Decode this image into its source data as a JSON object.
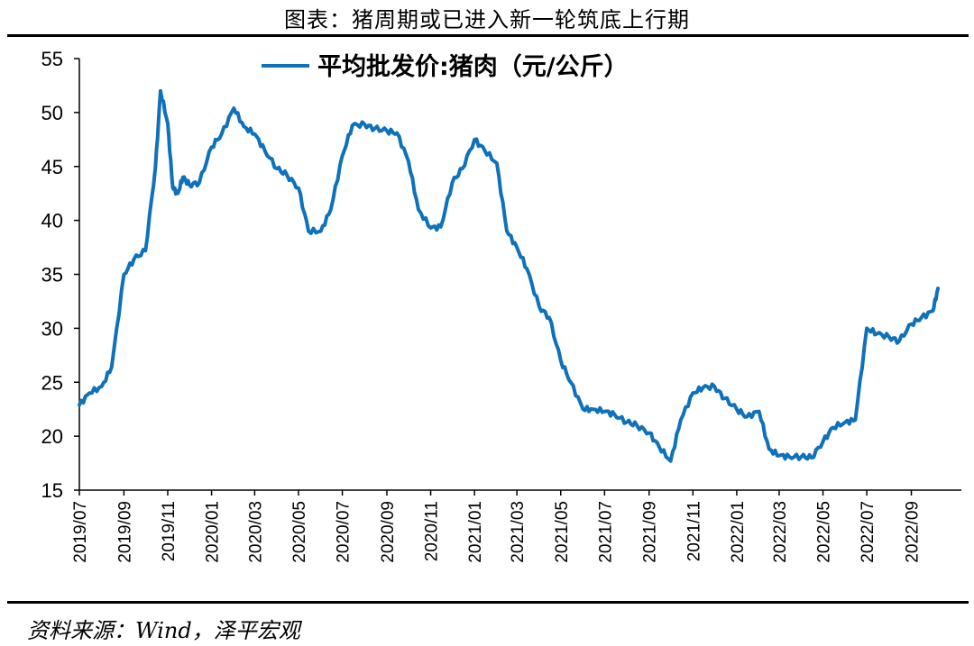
{
  "header": {
    "title": "图表：猪周期或已进入新一轮筑底上行期"
  },
  "footer": {
    "source": "资料来源：Wind，泽平宏观"
  },
  "colors": {
    "line": "#0F71BA",
    "axis": "#000000"
  },
  "chart_data": {
    "type": "line",
    "title": "",
    "xlabel": "",
    "ylabel": "",
    "ylim": [
      15,
      55
    ],
    "yticks": [
      15,
      20,
      25,
      30,
      35,
      40,
      45,
      50,
      55
    ],
    "xticks": [
      "2019/07",
      "2019/09",
      "2019/11",
      "2020/01",
      "2020/03",
      "2020/05",
      "2020/07",
      "2020/09",
      "2020/11",
      "2021/01",
      "2021/03",
      "2021/05",
      "2021/07",
      "2021/09",
      "2021/11",
      "2022/01",
      "2022/03",
      "2022/05",
      "2022/07",
      "2022/09"
    ],
    "grid": false,
    "legend": "top-center",
    "series": [
      {
        "name": "平均批发价:猪肉（元/公斤）",
        "x": [
          "2019/07/01",
          "2019/07/15",
          "2019/08/01",
          "2019/08/15",
          "2019/09/01",
          "2019/09/15",
          "2019/10/01",
          "2019/10/15",
          "2019/10/22",
          "2019/11/01",
          "2019/11/08",
          "2019/11/15",
          "2019/11/22",
          "2019/12/01",
          "2019/12/15",
          "2020/01/01",
          "2020/01/15",
          "2020/02/01",
          "2020/02/15",
          "2020/03/01",
          "2020/03/15",
          "2020/04/01",
          "2020/04/15",
          "2020/05/01",
          "2020/05/15",
          "2020/06/01",
          "2020/06/15",
          "2020/07/01",
          "2020/07/15",
          "2020/08/01",
          "2020/08/15",
          "2020/09/01",
          "2020/09/15",
          "2020/10/01",
          "2020/10/15",
          "2020/11/01",
          "2020/11/15",
          "2020/12/01",
          "2020/12/15",
          "2021/01/01",
          "2021/01/15",
          "2021/02/01",
          "2021/02/15",
          "2021/03/01",
          "2021/03/15",
          "2021/04/01",
          "2021/04/15",
          "2021/05/01",
          "2021/05/15",
          "2021/06/01",
          "2021/06/15",
          "2021/07/01",
          "2021/07/15",
          "2021/08/01",
          "2021/08/15",
          "2021/09/01",
          "2021/09/15",
          "2021/10/01",
          "2021/10/15",
          "2021/11/01",
          "2021/11/15",
          "2021/12/01",
          "2021/12/15",
          "2022/01/01",
          "2022/01/15",
          "2022/02/01",
          "2022/02/15",
          "2022/03/01",
          "2022/03/15",
          "2022/04/01",
          "2022/04/15",
          "2022/05/01",
          "2022/05/15",
          "2022/06/01",
          "2022/06/15",
          "2022/07/01",
          "2022/07/15",
          "2022/08/01",
          "2022/08/15",
          "2022/09/01",
          "2022/09/15",
          "2022/10/01",
          "2022/10/08"
        ],
        "y": [
          22.9,
          24.0,
          24.6,
          26.4,
          35.0,
          36.4,
          37.2,
          45.0,
          52.0,
          49.0,
          43.0,
          42.5,
          44.0,
          43.3,
          43.5,
          46.8,
          48.0,
          50.4,
          48.7,
          48.0,
          46.5,
          44.8,
          44.2,
          43.0,
          39.0,
          39.0,
          41.0,
          46.0,
          48.8,
          48.9,
          48.5,
          48.3,
          48.1,
          45.5,
          41.0,
          39.3,
          39.4,
          43.5,
          44.8,
          47.5,
          46.5,
          45.3,
          39.0,
          37.5,
          35.5,
          32.0,
          31.0,
          27.0,
          25.0,
          22.5,
          22.5,
          22.3,
          22.0,
          21.3,
          21.0,
          20.3,
          19.0,
          17.7,
          21.5,
          24.0,
          24.5,
          24.6,
          23.5,
          22.5,
          21.8,
          22.3,
          18.8,
          18.2,
          18.1,
          18.1,
          18.0,
          19.5,
          20.8,
          21.3,
          21.5,
          30.0,
          29.5,
          29.2,
          28.8,
          30.4,
          31.0,
          31.6,
          33.7
        ]
      }
    ]
  }
}
